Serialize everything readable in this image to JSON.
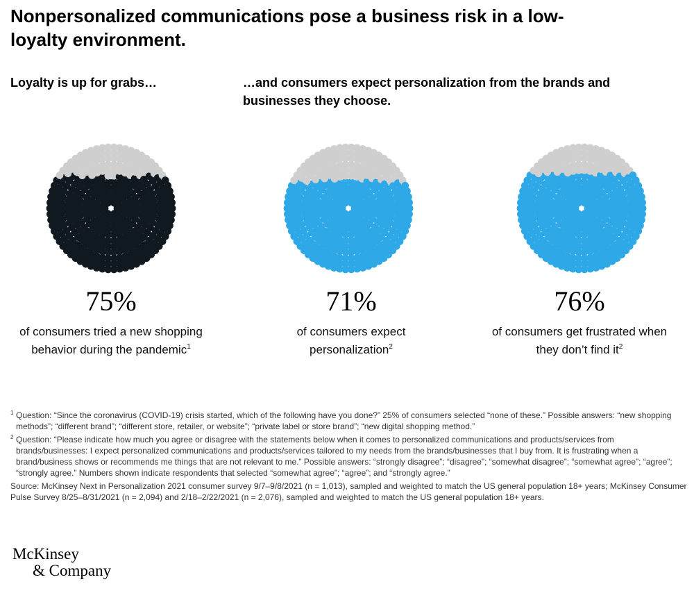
{
  "title": "Nonpersonalized communications pose a business risk in a low-loyalty environment.",
  "left_heading": "Loyalty is up for grabs…",
  "right_heading": "…and consumers expect personalization from the brands and businesses they choose.",
  "colors": {
    "dark": "#101820",
    "blue": "#2ea8e6",
    "gray": "#cfcfcf"
  },
  "chart_data": [
    {
      "type": "dot-pie",
      "value_percent": 75,
      "label": "75%",
      "description": "of consumers tried a new shopping behavior during the pandemic",
      "footnote": "1",
      "color": "#101820"
    },
    {
      "type": "dot-pie",
      "value_percent": 71,
      "label": "71%",
      "description": "of consumers expect personalization",
      "footnote": "2",
      "color": "#2ea8e6"
    },
    {
      "type": "dot-pie",
      "value_percent": 76,
      "label": "76%",
      "description": "of consumers get frustrated when they don’t find it",
      "footnote": "2",
      "color": "#2ea8e6"
    }
  ],
  "notes": {
    "fn1_mark": "1",
    "fn1_text": "Question: “Since the coronavirus (COVID-19) crisis started, which of the following have you done?” 25% of consumers selected “none of these.” Possible answers: “new shopping methods”; “different brand”; “different store, retailer, or website”; “private label or store brand”; “new digital shopping method.”",
    "fn2_mark": "2",
    "fn2_text": "Question: “Please indicate how much you agree or disagree with the statements below when it comes to personalized communications and products/services from brands/businesses: I expect personalized communications and products/services tailored to my needs from the brands/businesses that I buy from. It is frustrating when a brand/business shows or recommends me things that are not relevant to me.” Possible answers: “strongly disagree”; “disagree”; “somewhat disagree”; “somewhat agree”; “agree”; “strongly agree.” Numbers shown indicate respondents that selected “somewhat agree”; “agree”; and “strongly agree.”",
    "source": "Source: McKinsey Next in Personalization 2021 consumer survey 9/7–9/8/2021 (n = 1,013), sampled and weighted to match the US general population 18+ years; McKinsey Consumer Pulse Survey 8/25–8/31/2021 (n = 2,094) and 2/18–2/22/2021 (n = 2,076), sampled and weighted to match the US general population 18+ years."
  },
  "logo": {
    "line1": "McKinsey",
    "line2": "& Company"
  }
}
